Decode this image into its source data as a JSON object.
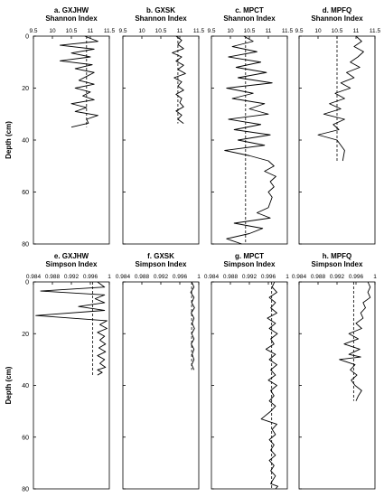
{
  "chart_data": [
    {
      "type": "line",
      "label": "a. GXJHW",
      "index_name": "Shannon Index",
      "ylabel": "Depth (cm)",
      "xlim": [
        9.5,
        11.5
      ],
      "xticks": [
        "9.5",
        "10",
        "10.5",
        "11",
        "11.5"
      ],
      "ylim": [
        0,
        80
      ],
      "yticks": [
        "0",
        "20",
        "40",
        "60",
        "80"
      ],
      "mean": 10.9,
      "series": [
        {
          "x": [
            10.85,
            11.2,
            10.2,
            11.1,
            10.5,
            11.0,
            10.2,
            11.05,
            10.6,
            11.1,
            10.9,
            10.7,
            11.1,
            10.6,
            11.0,
            10.8,
            11.1,
            10.5,
            10.9,
            10.6,
            11.2,
            10.9,
            10.95,
            10.5
          ],
          "y": [
            0,
            2,
            3.5,
            5,
            6.5,
            8,
            9.5,
            11,
            12.5,
            14,
            15.5,
            17,
            18.5,
            20,
            21.5,
            23,
            24.5,
            26,
            27.5,
            29,
            30.5,
            32,
            33.5,
            35
          ]
        }
      ]
    },
    {
      "type": "line",
      "label": "b. GXSK",
      "index_name": "Shannon Index",
      "ylabel": "",
      "xlim": [
        9.5,
        11.5
      ],
      "xticks": [
        "9.5",
        "10",
        "10.5",
        "11",
        "11.5"
      ],
      "ylim": [
        0,
        80
      ],
      "yticks": [],
      "mean": 10.95,
      "series": [
        {
          "x": [
            10.9,
            11.05,
            10.95,
            11.1,
            10.8,
            11.05,
            10.9,
            11.1,
            10.95,
            11.15,
            10.85,
            11.05,
            10.95,
            11.1,
            10.9,
            11.05,
            11.0,
            11.1,
            10.9,
            11.05,
            10.95,
            11.1
          ],
          "y": [
            0,
            1.6,
            3.2,
            4.8,
            6.4,
            8,
            9.6,
            11.2,
            12.8,
            14.4,
            16,
            17.6,
            19.2,
            20.8,
            22.4,
            24,
            25.6,
            27.2,
            28.8,
            30.4,
            32,
            33.6
          ]
        }
      ]
    },
    {
      "type": "line",
      "label": "c. MPCT",
      "index_name": "Shannon Index",
      "ylabel": "",
      "xlim": [
        9.5,
        11.5
      ],
      "xticks": [
        "9.5",
        "10",
        "10.5",
        "11",
        "11.5"
      ],
      "ylim": [
        0,
        80
      ],
      "yticks": [],
      "mean": 10.4,
      "series": [
        {
          "x": [
            10.35,
            10.6,
            10.05,
            10.7,
            9.95,
            10.8,
            10.15,
            10.95,
            10.2,
            11.1,
            9.9,
            10.6,
            10.05,
            10.9,
            10.5,
            11.0,
            9.95,
            10.8,
            10.1,
            11.05,
            10.2,
            10.9,
            9.85,
            10.5,
            11.0,
            11.15,
            10.9,
            11.2,
            11.05,
            11.15,
            11.0,
            11.1,
            11.05,
            11.0,
            10.7,
            11.05,
            10.1,
            10.85,
            10.5,
            9.9,
            10.3
          ],
          "y": [
            0,
            2,
            4,
            6,
            8,
            10,
            12,
            14,
            16,
            18,
            20,
            22,
            24,
            26,
            28,
            30,
            32,
            34,
            36,
            38,
            40,
            42,
            44,
            46,
            48,
            50,
            52,
            54,
            56,
            58,
            60,
            62,
            64,
            66,
            68,
            70,
            72,
            74,
            76,
            78,
            80
          ]
        }
      ]
    },
    {
      "type": "line",
      "label": "d. MPFQ",
      "index_name": "Shannon Index",
      "ylabel": "",
      "xlim": [
        9.5,
        11.5
      ],
      "xticks": [
        "9.5",
        "10",
        "10.5",
        "11",
        "11.5"
      ],
      "ylim": [
        0,
        80
      ],
      "yticks": [],
      "mean": 10.5,
      "series": [
        {
          "x": [
            11.0,
            11.15,
            10.95,
            11.2,
            11.05,
            10.85,
            11.1,
            10.75,
            10.95,
            10.6,
            10.85,
            10.45,
            10.7,
            10.3,
            10.6,
            10.15,
            10.7,
            10.4,
            10.55,
            10.0,
            10.5,
            10.7,
            10.65
          ],
          "y": [
            0,
            2,
            4,
            6,
            8,
            10,
            12,
            14,
            16,
            18,
            20,
            22,
            24,
            26,
            28,
            30,
            32,
            34,
            36,
            38,
            40,
            44,
            48
          ]
        }
      ]
    },
    {
      "type": "line",
      "label": "e. GXJHW",
      "index_name": "Simpson Index",
      "ylabel": "Depth (cm)",
      "xlim": [
        0.984,
        1.0
      ],
      "xticks": [
        "0.984",
        "0.988",
        "0.992",
        "0.996",
        "1"
      ],
      "ylim": [
        0,
        80
      ],
      "yticks": [
        "0",
        "20",
        "40",
        "60",
        "80"
      ],
      "mean": 0.9965,
      "series": [
        {
          "x": [
            0.9975,
            0.999,
            0.9855,
            0.999,
            0.997,
            0.999,
            0.9935,
            0.999,
            0.9845,
            0.9995,
            0.998,
            0.9995,
            0.9975,
            0.999,
            0.998,
            0.9992,
            0.9978,
            0.9992,
            0.9975,
            0.999,
            0.998,
            0.9992,
            0.9975,
            0.9985,
            0.9975
          ],
          "y": [
            0,
            2,
            3.5,
            5,
            6.5,
            8,
            9.5,
            11,
            13,
            15,
            16.5,
            18,
            19.5,
            21,
            22.5,
            24,
            25.5,
            27,
            28.5,
            30,
            31.5,
            33,
            34,
            35,
            36
          ]
        }
      ]
    },
    {
      "type": "line",
      "label": "f. GXSK",
      "index_name": "Simpson Index",
      "ylabel": "",
      "xlim": [
        0.984,
        1.0
      ],
      "xticks": [
        "0.984",
        "0.988",
        "0.992",
        "0.996",
        "1"
      ],
      "ylim": [
        0,
        80
      ],
      "yticks": [],
      "mean": 0.9985,
      "series": [
        {
          "x": [
            0.9985,
            0.999,
            0.9983,
            0.999,
            0.9985,
            0.9991,
            0.9984,
            0.999,
            0.9986,
            0.9991,
            0.9985,
            0.999,
            0.9984,
            0.999,
            0.9986,
            0.999,
            0.9985,
            0.999
          ],
          "y": [
            0,
            2,
            4,
            6,
            8,
            10,
            12,
            14,
            16,
            18,
            20,
            22,
            24,
            26,
            28,
            30,
            32,
            34
          ]
        }
      ]
    },
    {
      "type": "line",
      "label": "g. MPCT",
      "index_name": "Simpson Index",
      "ylabel": "",
      "xlim": [
        0.984,
        1.0
      ],
      "xticks": [
        "0.984",
        "0.988",
        "0.992",
        "0.996",
        "1"
      ],
      "ylim": [
        0,
        80
      ],
      "yticks": [],
      "mean": 0.9967,
      "series": [
        {
          "x": [
            0.9973,
            0.9968,
            0.9978,
            0.9962,
            0.9975,
            0.9965,
            0.9978,
            0.9958,
            0.9975,
            0.9962,
            0.9979,
            0.9965,
            0.9972,
            0.9955,
            0.9975,
            0.9962,
            0.9978,
            0.9965,
            0.9975,
            0.996,
            0.9978,
            0.9965,
            0.9972,
            0.9962,
            0.9975,
            0.9965,
            0.9945,
            0.9978,
            0.9968,
            0.9975,
            0.9962,
            0.9972,
            0.9965,
            0.9975,
            0.9962,
            0.9972,
            0.9965,
            0.9975,
            0.9968,
            0.9965,
            0.998,
            0.9975
          ],
          "y": [
            0,
            2,
            4,
            6,
            8,
            10,
            12,
            14,
            16,
            18,
            20,
            22,
            24,
            26,
            28,
            30,
            32,
            34,
            36,
            38,
            40,
            42,
            44,
            46,
            48,
            50,
            53,
            55,
            57,
            59,
            61,
            63,
            65,
            67,
            69,
            71,
            73,
            75,
            77,
            78,
            79,
            80
          ]
        }
      ]
    },
    {
      "type": "line",
      "label": "h. MPFQ",
      "index_name": "Simpson Index",
      "ylabel": "",
      "xlim": [
        0.984,
        1.0
      ],
      "xticks": [
        "0.984",
        "0.988",
        "0.992",
        "0.996",
        "1"
      ],
      "ylim": [
        0,
        80
      ],
      "yticks": [],
      "mean": 0.9955,
      "series": [
        {
          "x": [
            0.9985,
            0.999,
            0.9985,
            0.999,
            0.9975,
            0.998,
            0.997,
            0.9975,
            0.996,
            0.9972,
            0.9945,
            0.9965,
            0.9935,
            0.9968,
            0.9945,
            0.997,
            0.9925,
            0.9958,
            0.9948,
            0.9962,
            0.995,
            0.9958,
            0.9972,
            0.9965,
            0.996
          ],
          "y": [
            0,
            2,
            4,
            6,
            8,
            10,
            12,
            14,
            16,
            18,
            20,
            22,
            24,
            26,
            28,
            29,
            30,
            32,
            34,
            36,
            38,
            40,
            42,
            44,
            46
          ]
        }
      ]
    }
  ]
}
